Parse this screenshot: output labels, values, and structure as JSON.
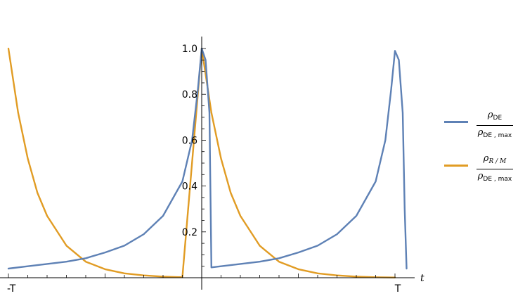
{
  "chart_data": {
    "type": "line",
    "title": "",
    "xlabel": "t",
    "ylabel": "",
    "xlim": [
      -1,
      1
    ],
    "ylim": [
      0,
      1
    ],
    "x_ticks": [
      {
        "value": -1,
        "label": "-T"
      },
      {
        "value": 1,
        "label": "T"
      }
    ],
    "y_ticks": [
      0.2,
      0.4,
      0.6,
      0.8,
      1.0
    ],
    "y_tick_labels": [
      "0.2",
      "0.4",
      "0.6",
      "0.8",
      "1.0"
    ],
    "grid": false,
    "legend_position": "right",
    "series": [
      {
        "name": "ρDE / ρDE,max",
        "color": "#5e81b5",
        "x": [
          -1.0,
          -0.9,
          -0.8,
          -0.7,
          -0.6,
          -0.5,
          -0.4,
          -0.3,
          -0.2,
          -0.1,
          -0.05,
          -0.02,
          0.0,
          0.02,
          0.04,
          0.05,
          0.1,
          0.2,
          0.3,
          0.4,
          0.5,
          0.6,
          0.7,
          0.8,
          0.9,
          0.95,
          0.98,
          1.0,
          1.02,
          1.04,
          1.05,
          1.06
        ],
        "y": [
          0.04,
          0.05,
          0.06,
          0.07,
          0.085,
          0.11,
          0.14,
          0.19,
          0.27,
          0.42,
          0.6,
          0.82,
          1.0,
          0.95,
          0.72,
          0.045,
          0.05,
          0.06,
          0.07,
          0.085,
          0.11,
          0.14,
          0.19,
          0.27,
          0.42,
          0.6,
          0.82,
          0.99,
          0.95,
          0.72,
          0.3,
          0.04
        ]
      },
      {
        "name": "ρR/M / ρDE,max",
        "color": "#e19c24",
        "x": [
          -1.0,
          -0.95,
          -0.9,
          -0.85,
          -0.8,
          -0.7,
          -0.6,
          -0.5,
          -0.4,
          -0.3,
          -0.2,
          -0.1,
          0.0,
          0.05,
          0.1,
          0.15,
          0.2,
          0.3,
          0.4,
          0.5,
          0.6,
          0.7,
          0.8,
          0.9,
          1.0
        ],
        "y": [
          1.0,
          0.72,
          0.52,
          0.37,
          0.27,
          0.14,
          0.07,
          0.037,
          0.019,
          0.01,
          0.005,
          0.002,
          1.0,
          0.72,
          0.52,
          0.37,
          0.27,
          0.14,
          0.07,
          0.037,
          0.019,
          0.01,
          0.005,
          0.002,
          0.001
        ]
      }
    ]
  },
  "legend": [
    {
      "numerator": "ρ",
      "numerator_sub": "DE",
      "numerator_sub_italic": false,
      "denominator": "ρ",
      "denominator_sub": "DE , max",
      "color": "#5e81b5"
    },
    {
      "numerator": "ρ",
      "numerator_sub": "R / M",
      "numerator_sub_italic": true,
      "denominator": "ρ",
      "denominator_sub": "DE , max",
      "color": "#e19c24"
    }
  ]
}
